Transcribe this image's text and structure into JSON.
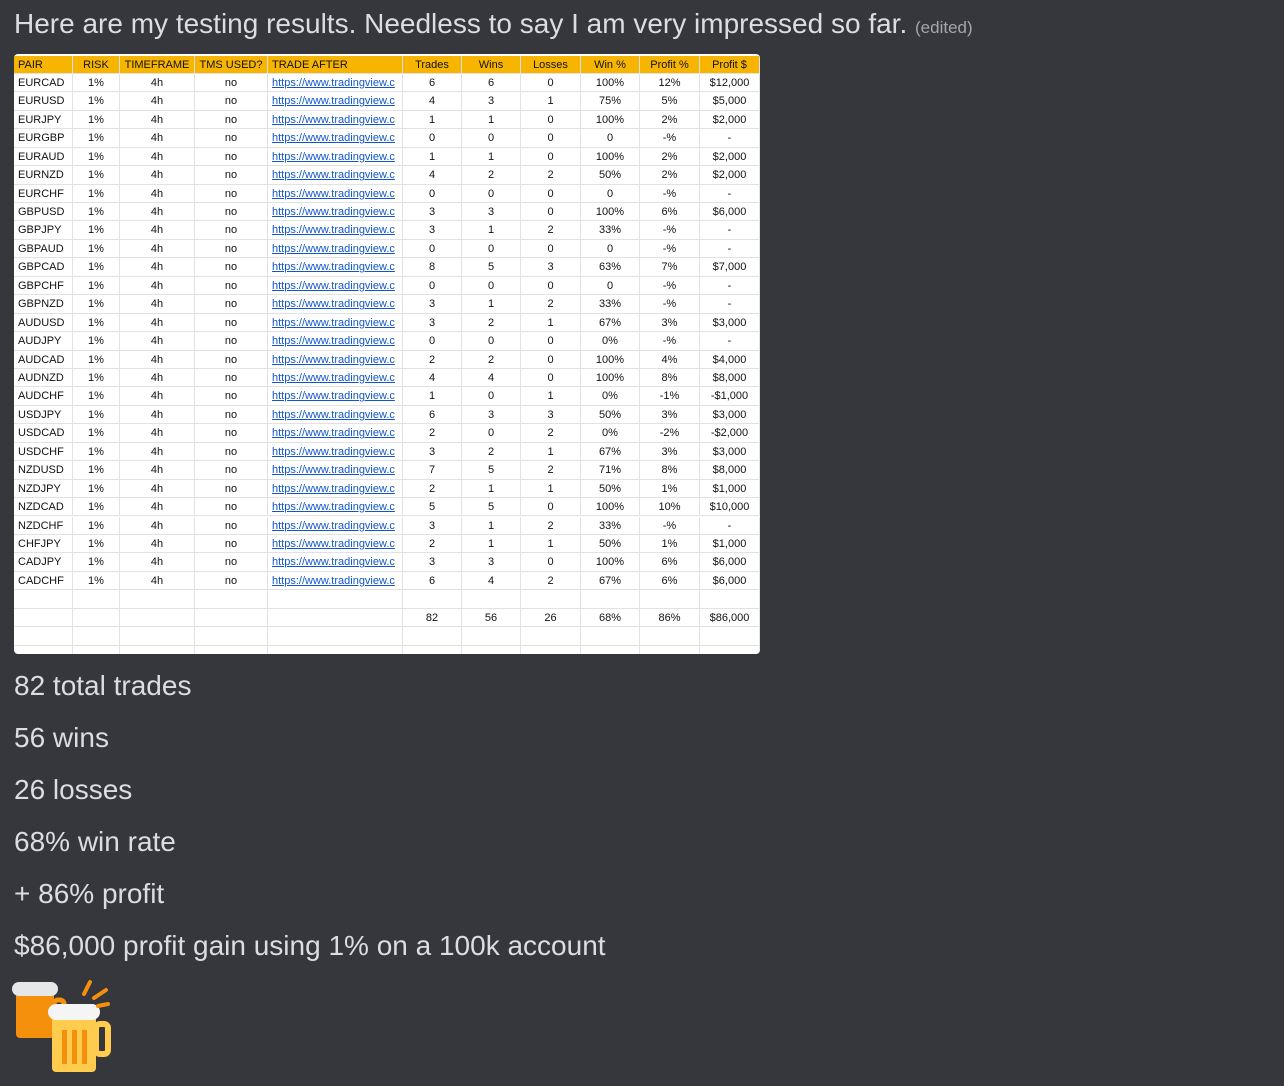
{
  "message": {
    "text": "Here are my testing results. Needless to say I am very impressed so far.",
    "edited": "(edited)"
  },
  "table": {
    "header": [
      "PAIR",
      "RISK",
      "TIMEFRAME",
      "TMS USED?",
      "TRADE AFTER",
      "Trades",
      "Wins",
      "Losses",
      "Win %",
      "Profit %",
      "Profit $"
    ],
    "rows": [
      [
        "EURCAD",
        "1%",
        "4h",
        "no",
        "https://www.tradingview.c",
        "6",
        "6",
        "0",
        "100%",
        "12%",
        "$12,000"
      ],
      [
        "EURUSD",
        "1%",
        "4h",
        "no",
        "https://www.tradingview.c",
        "4",
        "3",
        "1",
        "75%",
        "5%",
        "$5,000"
      ],
      [
        "EURJPY",
        "1%",
        "4h",
        "no",
        "https://www.tradingview.c",
        "1",
        "1",
        "0",
        "100%",
        "2%",
        "$2,000"
      ],
      [
        "EURGBP",
        "1%",
        "4h",
        "no",
        "https://www.tradingview.c",
        "0",
        "0",
        "0",
        "0",
        "-%",
        "-"
      ],
      [
        "EURAUD",
        "1%",
        "4h",
        "no",
        "https://www.tradingview.c",
        "1",
        "1",
        "0",
        "100%",
        "2%",
        "$2,000"
      ],
      [
        "EURNZD",
        "1%",
        "4h",
        "no",
        "https://www.tradingview.c",
        "4",
        "2",
        "2",
        "50%",
        "2%",
        "$2,000"
      ],
      [
        "EURCHF",
        "1%",
        "4h",
        "no",
        "https://www.tradingview.c",
        "0",
        "0",
        "0",
        "0",
        "-%",
        "-"
      ],
      [
        "GBPUSD",
        "1%",
        "4h",
        "no",
        "https://www.tradingview.c",
        "3",
        "3",
        "0",
        "100%",
        "6%",
        "$6,000"
      ],
      [
        "GBPJPY",
        "1%",
        "4h",
        "no",
        "https://www.tradingview.c",
        "3",
        "1",
        "2",
        "33%",
        "-%",
        "-"
      ],
      [
        "GBPAUD",
        "1%",
        "4h",
        "no",
        "https://www.tradingview.c",
        "0",
        "0",
        "0",
        "0",
        "-%",
        "-"
      ],
      [
        "GBPCAD",
        "1%",
        "4h",
        "no",
        "https://www.tradingview.c",
        "8",
        "5",
        "3",
        "63%",
        "7%",
        "$7,000"
      ],
      [
        "GBPCHF",
        "1%",
        "4h",
        "no",
        "https://www.tradingview.c",
        "0",
        "0",
        "0",
        "0",
        "-%",
        "-"
      ],
      [
        "GBPNZD",
        "1%",
        "4h",
        "no",
        "https://www.tradingview.c",
        "3",
        "1",
        "2",
        "33%",
        "-%",
        "-"
      ],
      [
        "AUDUSD",
        "1%",
        "4h",
        "no",
        "https://www.tradingview.c",
        "3",
        "2",
        "1",
        "67%",
        "3%",
        "$3,000"
      ],
      [
        "AUDJPY",
        "1%",
        "4h",
        "no",
        "https://www.tradingview.c",
        "0",
        "0",
        "0",
        "0%",
        "-%",
        "-"
      ],
      [
        "AUDCAD",
        "1%",
        "4h",
        "no",
        "https://www.tradingview.c",
        "2",
        "2",
        "0",
        "100%",
        "4%",
        "$4,000"
      ],
      [
        "AUDNZD",
        "1%",
        "4h",
        "no",
        "https://www.tradingview.c",
        "4",
        "4",
        "0",
        "100%",
        "8%",
        "$8,000"
      ],
      [
        "AUDCHF",
        "1%",
        "4h",
        "no",
        "https://www.tradingview.c",
        "1",
        "0",
        "1",
        "0%",
        "-1%",
        "-$1,000"
      ],
      [
        "USDJPY",
        "1%",
        "4h",
        "no",
        "https://www.tradingview.c",
        "6",
        "3",
        "3",
        "50%",
        "3%",
        "$3,000"
      ],
      [
        "USDCAD",
        "1%",
        "4h",
        "no",
        "https://www.tradingview.c",
        "2",
        "0",
        "2",
        "0%",
        "-2%",
        "-$2,000"
      ],
      [
        "USDCHF",
        "1%",
        "4h",
        "no",
        "https://www.tradingview.c",
        "3",
        "2",
        "1",
        "67%",
        "3%",
        "$3,000"
      ],
      [
        "NZDUSD",
        "1%",
        "4h",
        "no",
        "https://www.tradingview.c",
        "7",
        "5",
        "2",
        "71%",
        "8%",
        "$8,000"
      ],
      [
        "NZDJPY",
        "1%",
        "4h",
        "no",
        "https://www.tradingview.c",
        "2",
        "1",
        "1",
        "50%",
        "1%",
        "$1,000"
      ],
      [
        "NZDCAD",
        "1%",
        "4h",
        "no",
        "https://www.tradingview.c",
        "5",
        "5",
        "0",
        "100%",
        "10%",
        "$10,000"
      ],
      [
        "NZDCHF",
        "1%",
        "4h",
        "no",
        "https://www.tradingview.c",
        "3",
        "1",
        "2",
        "33%",
        "-%",
        "-"
      ],
      [
        "CHFJPY",
        "1%",
        "4h",
        "no",
        "https://www.tradingview.c",
        "2",
        "1",
        "1",
        "50%",
        "1%",
        "$1,000"
      ],
      [
        "CADJPY",
        "1%",
        "4h",
        "no",
        "https://www.tradingview.c",
        "3",
        "3",
        "0",
        "100%",
        "6%",
        "$6,000"
      ],
      [
        "CADCHF",
        "1%",
        "4h",
        "no",
        "https://www.tradingview.c",
        "6",
        "4",
        "2",
        "67%",
        "6%",
        "$6,000"
      ]
    ],
    "totals": [
      "82",
      "56",
      "26",
      "68%",
      "86%",
      "$86,000"
    ]
  },
  "lines": [
    "82 total trades",
    "56 wins",
    "26 losses",
    "68% win rate",
    "+ 86% profit",
    "$86,000 profit gain using 1% on a 100k account"
  ]
}
